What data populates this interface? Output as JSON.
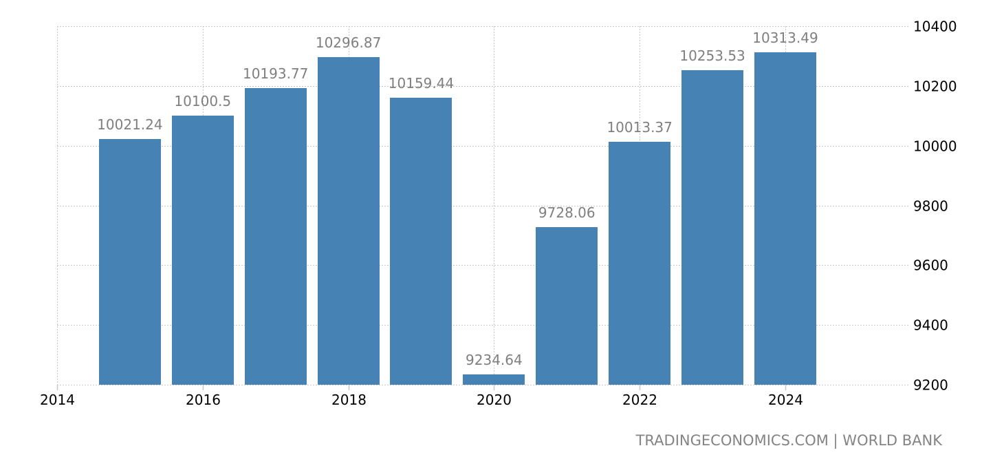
{
  "footer": {
    "source_text": "TRADINGECONOMICS.COM | WORLD BANK"
  },
  "colors": {
    "bar": "#4682b4",
    "bar_label": "#7f7f7f",
    "grid": "#c8c8c8",
    "axis_text": "#000000",
    "footer": "#848484"
  },
  "chart_data": {
    "type": "bar",
    "title": "",
    "xlabel": "",
    "ylabel": "",
    "categories": [
      "2015",
      "2016",
      "2017",
      "2018",
      "2019",
      "2020",
      "2021",
      "2022",
      "2023",
      "2024"
    ],
    "values": [
      10021.24,
      10100.5,
      10193.77,
      10296.87,
      10159.44,
      9234.64,
      9728.06,
      10013.37,
      10253.53,
      10313.49
    ],
    "value_labels": [
      "10021.24",
      "10100.5",
      "10193.77",
      "10296.87",
      "10159.44",
      "9234.64",
      "9728.06",
      "10013.37",
      "10253.53",
      "10313.49"
    ],
    "x_ticks": [
      "2014",
      "2016",
      "2018",
      "2020",
      "2022",
      "2024"
    ],
    "y_ticks": [
      "9200",
      "9400",
      "9600",
      "9800",
      "10000",
      "10200",
      "10400"
    ],
    "ylim": [
      9200,
      10400
    ],
    "xlim": [
      2014,
      2025.7
    ],
    "y_axis_position": "right",
    "grid": true,
    "legend": null,
    "bar_color": "#4682b4"
  }
}
